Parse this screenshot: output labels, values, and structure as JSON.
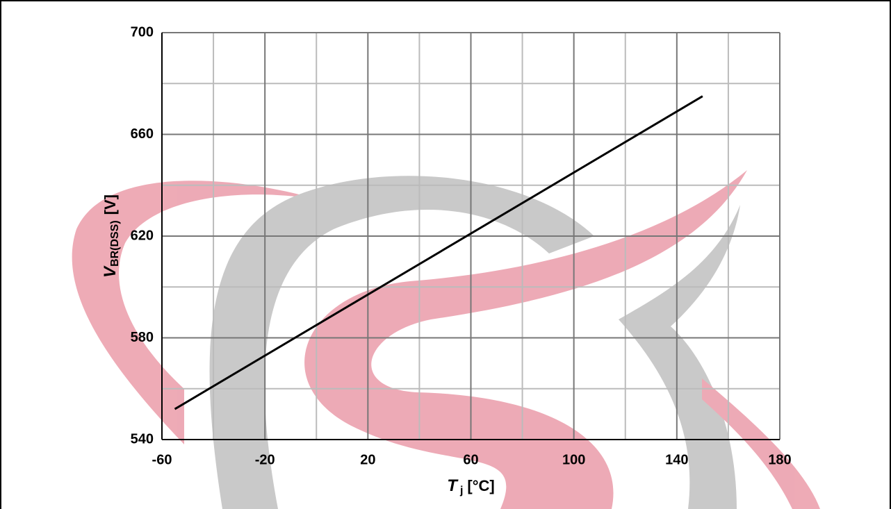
{
  "chart_data": {
    "type": "line",
    "xlabel": {
      "symbol": "T",
      "subscript": "j",
      "unit": "[°C]"
    },
    "ylabel": {
      "symbol": "V",
      "subscript": "BR(DSS)",
      "unit": "[V]"
    },
    "x": [
      -55,
      150
    ],
    "series": [
      {
        "color": "#000000",
        "values": [
          552,
          675
        ]
      }
    ],
    "xlim": [
      -60,
      180
    ],
    "xticks": [
      -60,
      -20,
      20,
      60,
      100,
      140,
      180
    ],
    "ylim": [
      540,
      700
    ],
    "yticks": [
      540,
      580,
      620,
      660,
      700
    ],
    "xminor": [
      -40,
      0,
      40,
      80,
      120,
      160
    ],
    "yminor": [
      560,
      600,
      640,
      680
    ],
    "grid": true
  }
}
